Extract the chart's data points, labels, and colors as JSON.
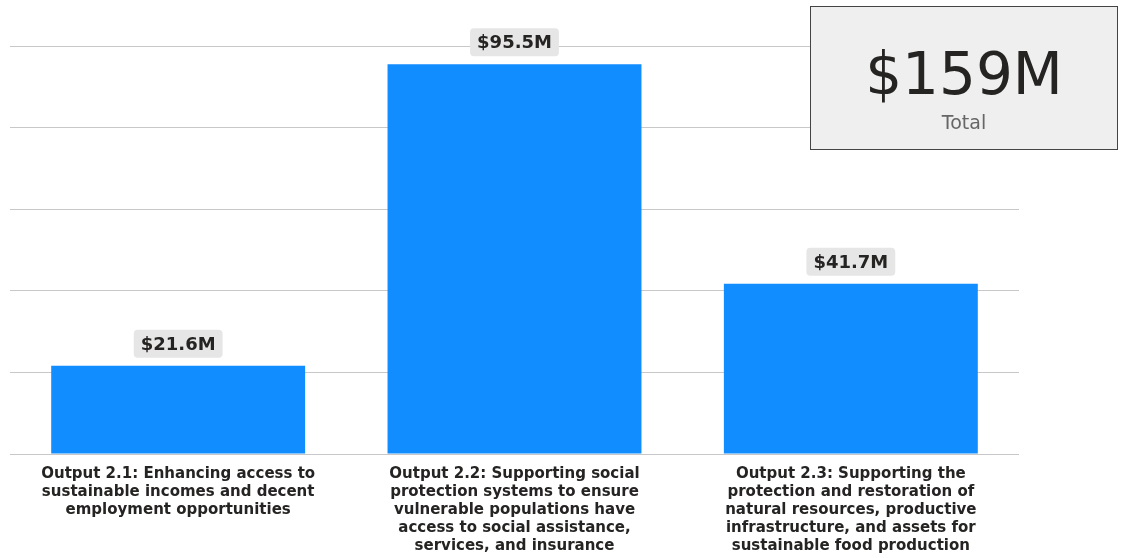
{
  "chart_data": [
    {
      "type": "bar",
      "categories": [
        "Output 2.1: Enhancing access to sustainable incomes and decent employment opportunities",
        "Output 2.2: Supporting social protection systems to ensure vulnerable populations have access to social assistance, services, and insurance",
        "Output 2.3: Supporting the protection and restoration of natural resources, productive infrastructure, and assets for sustainable food production"
      ],
      "values": [
        21.6,
        95.5,
        41.7
      ],
      "value_labels": [
        "$21.6M",
        "$95.5M",
        "$41.7M"
      ],
      "color": "#118dff",
      "ylim": [
        0,
        100
      ],
      "yticks": [
        {
          "value": 0,
          "label": null
        },
        {
          "value": 20,
          "label": null
        },
        {
          "value": 40,
          "label": null
        },
        {
          "value": 60,
          "label": null
        },
        {
          "value": 80,
          "label": null
        },
        {
          "value": 100,
          "label": null
        }
      ],
      "grid": "y",
      "tick_labels": "x",
      "legend": false
    },
    {
      "type": "other",
      "title": "$159M",
      "subtitle": "Total"
    }
  ]
}
